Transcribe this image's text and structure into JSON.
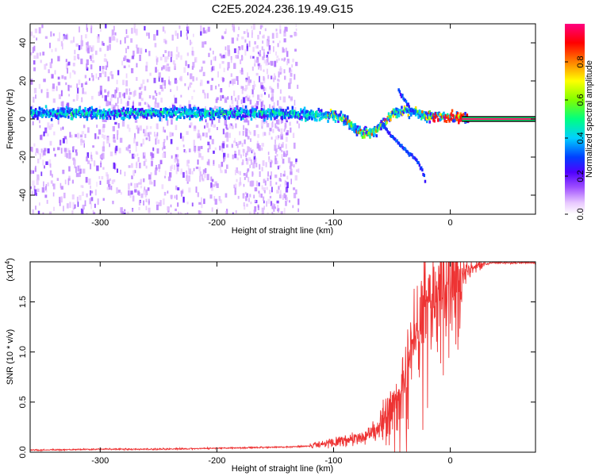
{
  "title": "C2E5.2024.236.19.49.G15",
  "chart_data": [
    {
      "type": "heatmap",
      "xlabel": "Height of straight line (km)",
      "ylabel": "Frequency (Hz)",
      "xlim": [
        -360,
        73
      ],
      "ylim": [
        -50,
        50
      ],
      "xticks": [
        -300,
        -200,
        -100,
        0
      ],
      "yticks": [
        -40,
        -20,
        0,
        20,
        40
      ],
      "colorbar": {
        "label": "Normalized spectral amplitude",
        "range": [
          0,
          1
        ],
        "ticks": [
          "0.0",
          "0.2",
          "0.4",
          "0.6",
          "0.8"
        ],
        "tick_values": [
          0,
          0.2,
          0.4,
          0.6,
          0.8
        ]
      },
      "trace": [
        {
          "x": -360,
          "f": 3
        },
        {
          "x": -300,
          "f": 3
        },
        {
          "x": -200,
          "f": 3
        },
        {
          "x": -140,
          "f": 3
        },
        {
          "x": -110,
          "f": 2
        },
        {
          "x": -100,
          "f": 2
        },
        {
          "x": -90,
          "f": -1
        },
        {
          "x": -80,
          "f": -6
        },
        {
          "x": -70,
          "f": -8
        },
        {
          "x": -60,
          "f": -4
        },
        {
          "x": -50,
          "f": 3
        },
        {
          "x": -40,
          "f": 5
        },
        {
          "x": -30,
          "f": 3
        },
        {
          "x": -20,
          "f": 1
        },
        {
          "x": -10,
          "f": 1
        },
        {
          "x": 0,
          "f": 1
        },
        {
          "x": 15,
          "f": 0
        },
        {
          "x": 73,
          "f": 0
        }
      ],
      "branches": [
        [
          {
            "x": -45,
            "f": 15
          },
          {
            "x": -40,
            "f": 10
          },
          {
            "x": -35,
            "f": 5
          },
          {
            "x": -30,
            "f": 3
          }
        ],
        [
          {
            "x": -60,
            "f": -2
          },
          {
            "x": -50,
            "f": -10
          },
          {
            "x": -40,
            "f": -16
          },
          {
            "x": -30,
            "f": -21
          },
          {
            "x": -24,
            "f": -28
          },
          {
            "x": -22,
            "f": -33
          }
        ]
      ],
      "noise_extent_x": [
        -360,
        -130
      ]
    },
    {
      "type": "line",
      "xlabel": "Height of straight line (km)",
      "ylabel": "SNR (10 * v/v)",
      "multiplier": "(x10",
      "multiplier_exp": "4",
      "multiplier_close": ")",
      "xlim": [
        -360,
        73
      ],
      "ylim": [
        0,
        1.9
      ],
      "xticks": [
        -300,
        -200,
        -100,
        0
      ],
      "yticks": [
        0.0,
        0.5,
        1.0,
        1.5
      ],
      "ytick_labels": [
        "0.0",
        "0.5",
        "1.0",
        "1.5"
      ],
      "color": "#ee3333",
      "series": [
        {
          "x": [
            -360,
            -300,
            -250,
            -200,
            -150,
            -120,
            -100,
            -80,
            -70,
            -60,
            -50,
            -45,
            -40,
            -35,
            -30,
            -25,
            -20,
            -15,
            -10,
            -5,
            0,
            5,
            10,
            20,
            30,
            40,
            50,
            60,
            73
          ],
          "values": [
            0.02,
            0.03,
            0.03,
            0.04,
            0.05,
            0.06,
            0.1,
            0.14,
            0.18,
            0.25,
            0.4,
            0.55,
            0.7,
            0.9,
            1.1,
            1.3,
            1.45,
            1.5,
            1.55,
            1.6,
            1.65,
            1.72,
            1.78,
            1.85,
            1.88,
            1.89,
            1.89,
            1.89,
            1.89
          ]
        }
      ]
    }
  ]
}
